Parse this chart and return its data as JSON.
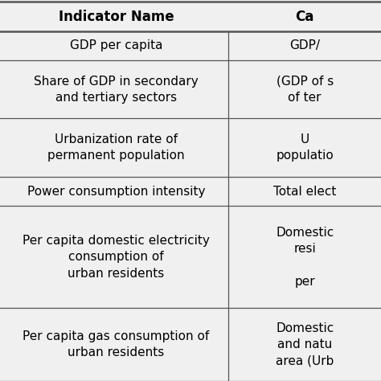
{
  "header": [
    "Indicator Name",
    "Ca"
  ],
  "row_data": [
    [
      "GDP per capita",
      "GDP/"
    ],
    [
      "Share of GDP in secondary\nand tertiary sectors",
      "(GDP of s\nof ter"
    ],
    [
      "Urbanization rate of\npermanent population",
      "U\npopulatio"
    ],
    [
      "Power consumption intensity",
      "Total elect"
    ],
    [
      "Per capita domestic electricity\nconsumption of\nurban residents",
      "Domestic\nresi\n\nper"
    ],
    [
      "Per capita gas consumption of\nurban residents",
      "Domestic\nand natu\narea (Urb"
    ]
  ],
  "col_split": 0.6,
  "bg_color": "#f0f0f0",
  "text_color": "#000000",
  "line_color": "#555555",
  "header_fontsize": 12,
  "cell_fontsize": 11,
  "header_lw": 1.8,
  "row_lw": 0.9,
  "fig_width": 4.74,
  "fig_height": 4.74,
  "dpi": 100
}
